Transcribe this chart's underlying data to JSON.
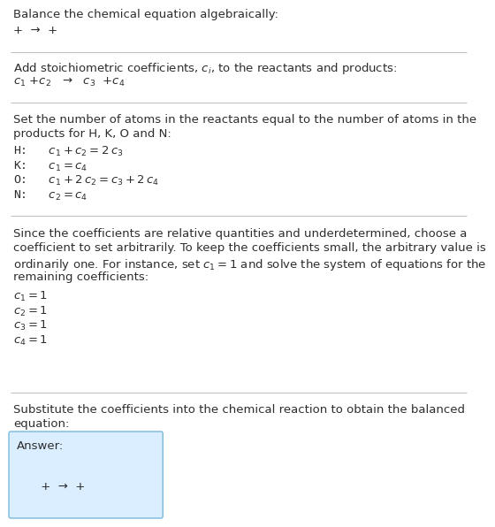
{
  "title": "Balance the chemical equation algebraically:",
  "line1": "+  →  +",
  "section2_title": "Add stoichiometric coefficients, $c_i$, to the reactants and products:",
  "line2": "$c_1$ +$c_2$   →   $c_3$  +$c_4$",
  "section3_title_l1": "Set the number of atoms in the reactants equal to the number of atoms in the",
  "section3_title_l2": "products for H, K, O and N:",
  "eq_H": "H:   $c_1 + c_2 = 2\\,c_3$",
  "eq_K": "K:   $c_1 = c_4$",
  "eq_O": "O:   $c_1 + 2\\,c_2 = c_3 + 2\\,c_4$",
  "eq_N": "N:   $c_2 = c_4$",
  "section4_l1": "Since the coefficients are relative quantities and underdetermined, choose a",
  "section4_l2": "coefficient to set arbitrarily. To keep the coefficients small, the arbitrary value is",
  "section4_l3": "ordinarily one. For instance, set $c_1 = 1$ and solve the system of equations for the",
  "section4_l4": "remaining coefficients:",
  "sol1": "$c_1 = 1$",
  "sol2": "$c_2 = 1$",
  "sol3": "$c_3 = 1$",
  "sol4": "$c_4 = 1$",
  "section5_l1": "Substitute the coefficients into the chemical reaction to obtain the balanced",
  "section5_l2": "equation:",
  "answer_label": "Answer:",
  "answer_eq": "     +  →  +",
  "bg_color": "#ffffff",
  "text_color": "#2d2d2d",
  "answer_box_color": "#daeeff",
  "answer_box_border": "#7ab8d9",
  "line_color": "#bbbbbb",
  "font_size": 9.5
}
